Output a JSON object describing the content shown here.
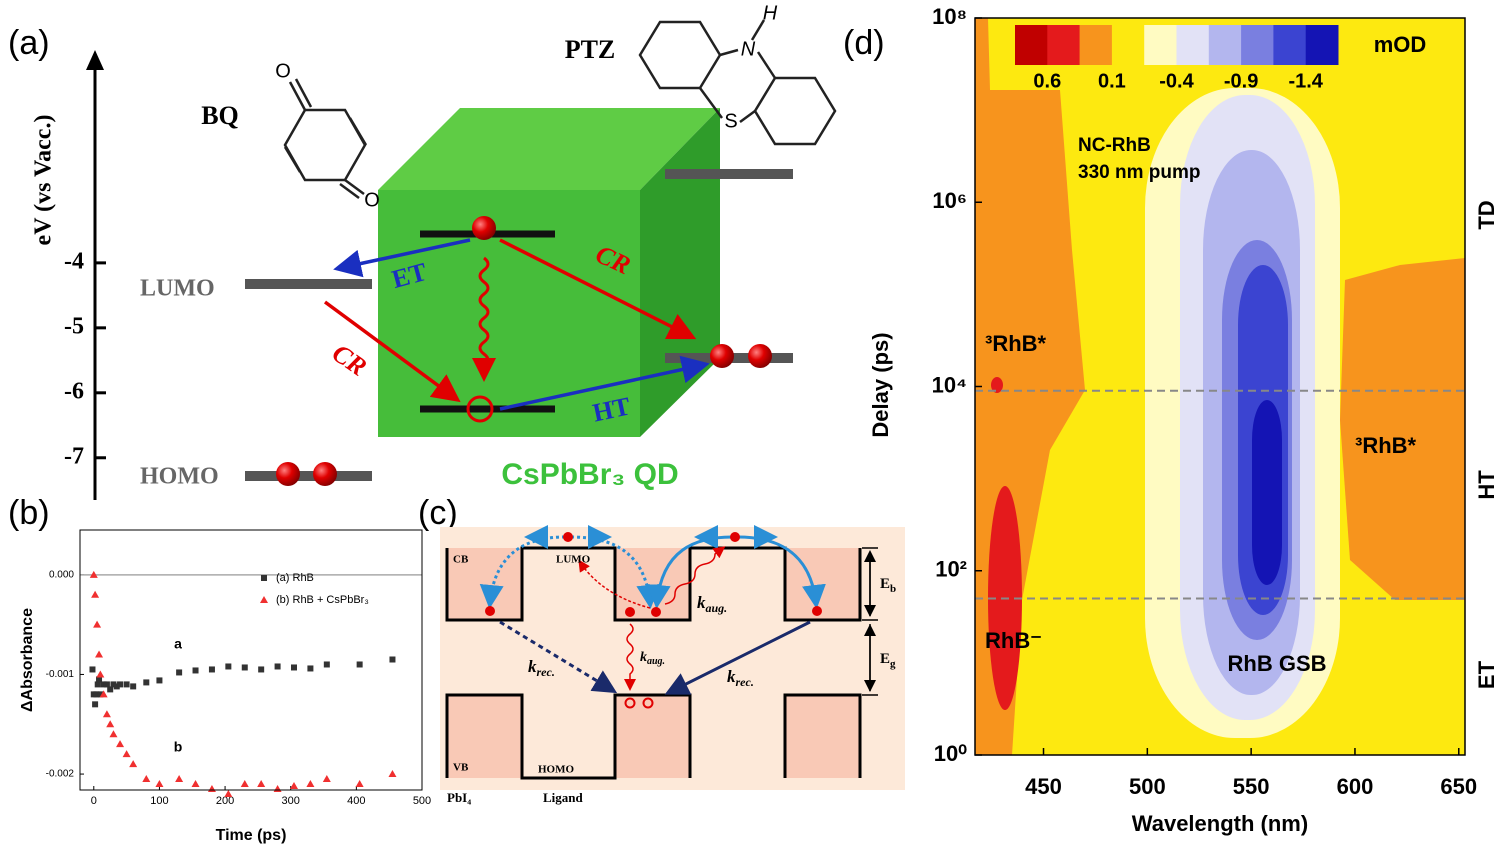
{
  "panel_a": {
    "label": "(a)",
    "y_axis_label": "eV (vs Vacc.)",
    "ylim": [
      -7.65,
      -0.8
    ],
    "yticks": [
      -4,
      -5,
      -6,
      -7
    ],
    "texts": {
      "bq": "BQ",
      "ptz": "PTZ",
      "lumo": "LUMO",
      "homo": "HOMO",
      "et": "ET",
      "ht": "HT",
      "cr_right": "CR",
      "cr_left": "CR",
      "qd": "CsPbBr₃ QD"
    },
    "atoms": [
      "O",
      "O",
      "N",
      "H",
      "S"
    ]
  },
  "panel_c": {
    "label": "(c)",
    "texts": {
      "cb": "CB",
      "lumo": "LUMO",
      "vb": "VB",
      "homo": "HOMO",
      "pbi": "PbI₄",
      "ligand": "Ligand"
    },
    "eb": {
      "main": "E",
      "sub": "b"
    },
    "eg": {
      "main": "E",
      "sub": "g"
    },
    "k_rec_left": {
      "main": "k",
      "sub": "rec."
    },
    "k_rec_right": {
      "main": "k",
      "sub": "rec."
    },
    "k_aug_top": {
      "main": "k",
      "sub": "aug."
    },
    "k_aug_mid": {
      "main": "k",
      "sub": "aug."
    }
  },
  "chart_data": [
    {
      "type": "scatter",
      "panel_label": "(b)",
      "x_label": "Time (ps)",
      "y_label": "ΔAbsorbance",
      "xlim": [
        -21,
        500
      ],
      "ylim": [
        -0.00216,
        0.00045
      ],
      "xticks": [
        0,
        100,
        200,
        300,
        400,
        500
      ],
      "yticks": [
        {
          "value": 0,
          "label": "0.000"
        },
        -0.001,
        -0.002
      ],
      "zero_line": true,
      "annotations": [
        "a",
        "b"
      ],
      "series": [
        {
          "name": "(a) RhB",
          "color": "#333333",
          "marker": "square",
          "x": [
            -2,
            0,
            2,
            4,
            6,
            8,
            10,
            15,
            20,
            25,
            30,
            35,
            40,
            50,
            60,
            80,
            100,
            130,
            155,
            180,
            205,
            230,
            255,
            280,
            305,
            330,
            355,
            405,
            455
          ],
          "values": [
            -0.00095,
            -0.0012,
            -0.0013,
            -0.0012,
            -0.0011,
            -0.00105,
            -0.0012,
            -0.0011,
            -0.0011,
            -0.00115,
            -0.0011,
            -0.00112,
            -0.0011,
            -0.0011,
            -0.00112,
            -0.00108,
            -0.00106,
            -0.00098,
            -0.00096,
            -0.00095,
            -0.00092,
            -0.00093,
            -0.00095,
            -0.00092,
            -0.00093,
            -0.00094,
            -0.0009,
            -0.0009,
            -0.00085
          ]
        },
        {
          "name": "(b) RhB + CsPbBr₃",
          "color": "#f03030",
          "marker": "triangle",
          "x": [
            0,
            2,
            5,
            8,
            10,
            15,
            20,
            25,
            30,
            40,
            50,
            60,
            80,
            100,
            130,
            155,
            180,
            205,
            230,
            255,
            280,
            305,
            330,
            355,
            405,
            455
          ],
          "values": [
            0,
            -0.0002,
            -0.0005,
            -0.0008,
            -0.001,
            -0.0012,
            -0.0014,
            -0.0015,
            -0.0016,
            -0.0017,
            -0.0018,
            -0.0019,
            -0.00205,
            -0.0021,
            -0.00205,
            -0.0021,
            -0.00215,
            -0.0022,
            -0.0021,
            -0.0021,
            -0.00215,
            -0.00212,
            -0.0021,
            -0.00205,
            -0.0021,
            -0.002
          ]
        }
      ]
    },
    {
      "type": "heatmap",
      "panel_label": "(d)",
      "x_label": "Wavelength (nm)",
      "y_label": "Delay (ps)",
      "xlim": [
        417,
        653
      ],
      "ylim": [
        1,
        100000000
      ],
      "log_y": true,
      "xticks": [
        450,
        500,
        550,
        600,
        650
      ],
      "yticks": [
        {
          "value": 1,
          "label": "10⁰"
        },
        {
          "value": 100,
          "label": "10²"
        },
        {
          "value": 10000,
          "label": "10⁴"
        },
        {
          "value": 1000000,
          "label": "10⁶"
        },
        {
          "value": 100000000,
          "label": "10⁸"
        }
      ],
      "colorbar": {
        "label": "mOD",
        "colors": [
          "#c00000",
          "#e41a1c",
          "#f7941d",
          "#fde910",
          "#fffbc2",
          "#e2e2f6",
          "#b3b6ee",
          "#7a7fe0",
          "#3b44d1",
          "#1414b4"
        ],
        "ticks": [
          0.6,
          0.1,
          -0.4,
          -0.9,
          -1.4
        ]
      },
      "dividers": [
        50,
        9000
      ],
      "annotations": [
        "NC-RhB",
        "330 nm pump",
        "³RhB*",
        "³RhB*",
        "RhB⁻",
        "RhB GSB"
      ],
      "regions": [
        "TD",
        "HT",
        "ET"
      ]
    }
  ]
}
